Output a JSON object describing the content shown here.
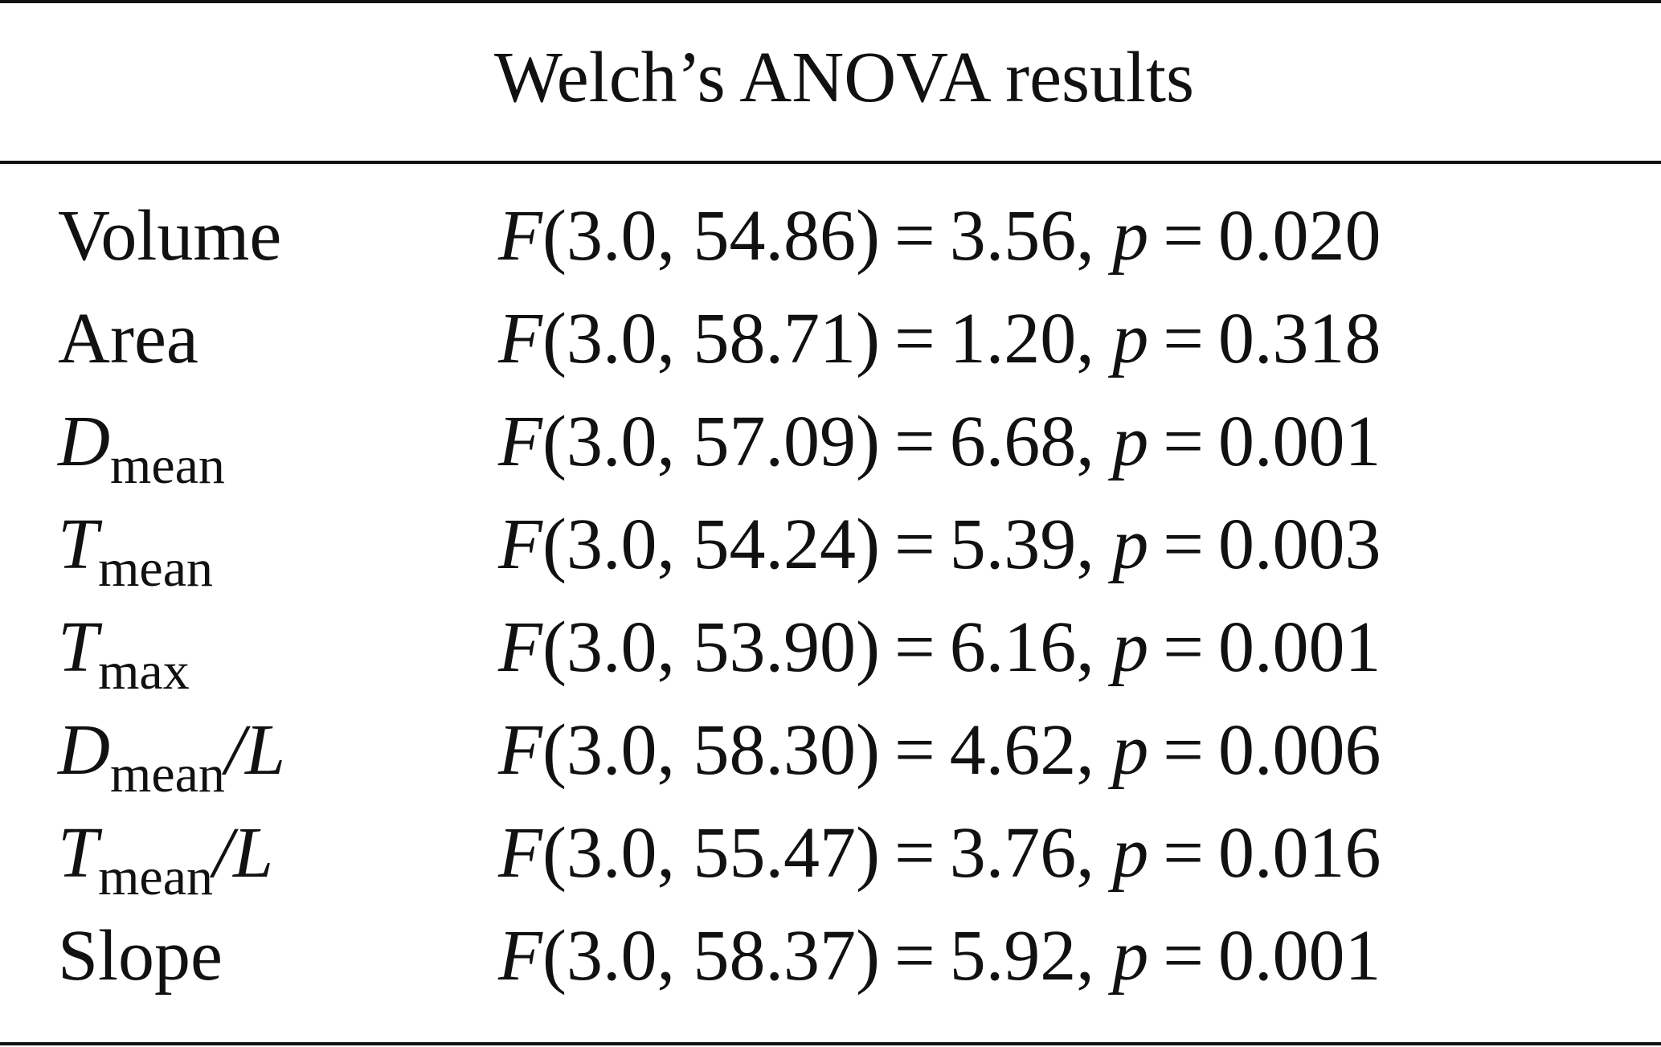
{
  "table": {
    "header": "Welch’s ANOVA results",
    "rows": [
      {
        "label_main": "Volume",
        "label_sub": "",
        "label_suffix": "",
        "label_italic": false,
        "df": "(3.0, 54.86)",
        "f": "3.56,",
        "p": "0.020"
      },
      {
        "label_main": "Area",
        "label_sub": "",
        "label_suffix": "",
        "label_italic": false,
        "df": "(3.0, 58.71)",
        "f": "1.20,",
        "p": "0.318"
      },
      {
        "label_main": "D",
        "label_sub": "mean",
        "label_suffix": "",
        "label_italic": true,
        "df": "(3.0, 57.09)",
        "f": "6.68,",
        "p": "0.001"
      },
      {
        "label_main": "T",
        "label_sub": "mean",
        "label_suffix": "",
        "label_italic": true,
        "df": "(3.0, 54.24)",
        "f": "5.39,",
        "p": "0.003"
      },
      {
        "label_main": "T",
        "label_sub": "max",
        "label_suffix": "",
        "label_italic": true,
        "df": "(3.0, 53.90)",
        "f": "6.16,",
        "p": "0.001"
      },
      {
        "label_main": "D",
        "label_sub": "mean",
        "label_suffix": "/L",
        "label_italic": true,
        "df": "(3.0, 58.30)",
        "f": "4.62,",
        "p": "0.006"
      },
      {
        "label_main": "T",
        "label_sub": "mean",
        "label_suffix": "/L",
        "label_italic": true,
        "df": "(3.0, 55.47)",
        "f": "3.76,",
        "p": "0.016"
      },
      {
        "label_main": "Slope",
        "label_sub": "",
        "label_suffix": "",
        "label_italic": false,
        "df": "(3.0, 58.37)",
        "f": "5.92,",
        "p": "0.001"
      }
    ],
    "symbols": {
      "f_stat": "F",
      "p_value": "p",
      "equals": "="
    }
  }
}
